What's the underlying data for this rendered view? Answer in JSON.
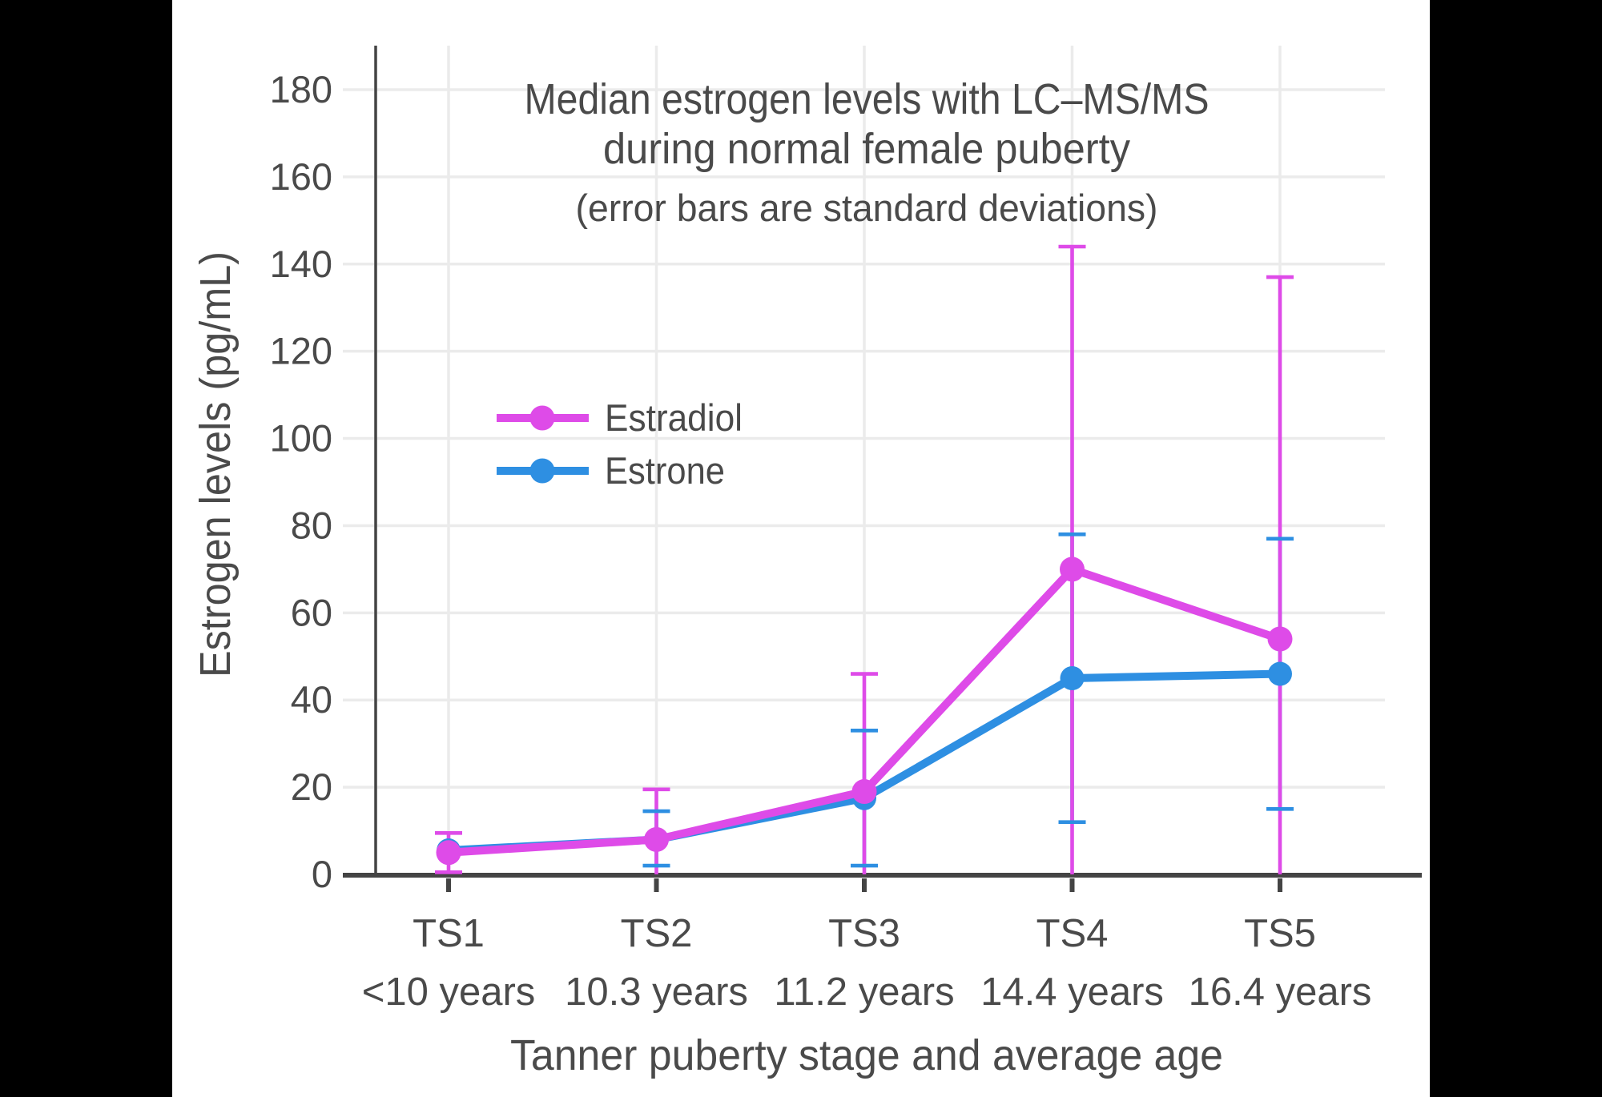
{
  "canvas": {
    "letterbox_color": "#000000",
    "background": "#ffffff",
    "text_color": "#4a4a4a",
    "axis_color": "#444444",
    "grid_color": "#ebebeb"
  },
  "chart_data": {
    "type": "line",
    "title_lines": [
      "Median estrogen levels with LC–MS/MS",
      "during normal female puberty"
    ],
    "subtitle": "(error bars are standard deviations)",
    "xlabel": "Tanner puberty stage and average age",
    "ylabel": "Estrogen levels (pg/mL)",
    "ylim": [
      0,
      190
    ],
    "yticks": [
      0,
      20,
      40,
      60,
      80,
      100,
      120,
      140,
      160,
      180
    ],
    "grid": true,
    "legend_position": "inside-left-upper-middle",
    "categories": [
      {
        "stage": "TS1",
        "age": "<10 years"
      },
      {
        "stage": "TS2",
        "age": "10.3 years"
      },
      {
        "stage": "TS3",
        "age": "11.2 years"
      },
      {
        "stage": "TS4",
        "age": "14.4 years"
      },
      {
        "stage": "TS5",
        "age": "16.4 years"
      }
    ],
    "series": [
      {
        "name": "Estradiol",
        "color": "#DE4BE8",
        "values": [
          5,
          8,
          19,
          70,
          54
        ],
        "error_top": [
          9.5,
          19.5,
          46,
          144,
          137
        ],
        "error_bottom": [
          0.5,
          null,
          null,
          null,
          null
        ],
        "error_bottom_clipped_at_zero": [
          false,
          true,
          true,
          true,
          true
        ]
      },
      {
        "name": "Estrone",
        "color": "#2E8FE2",
        "values": [
          5.5,
          8,
          17.5,
          45,
          46
        ],
        "error_top": [
          null,
          14.5,
          33,
          78,
          77
        ],
        "error_bottom": [
          null,
          2,
          2,
          12,
          15
        ],
        "error_bottom_clipped_at_zero": [
          false,
          false,
          false,
          false,
          false
        ]
      }
    ]
  }
}
